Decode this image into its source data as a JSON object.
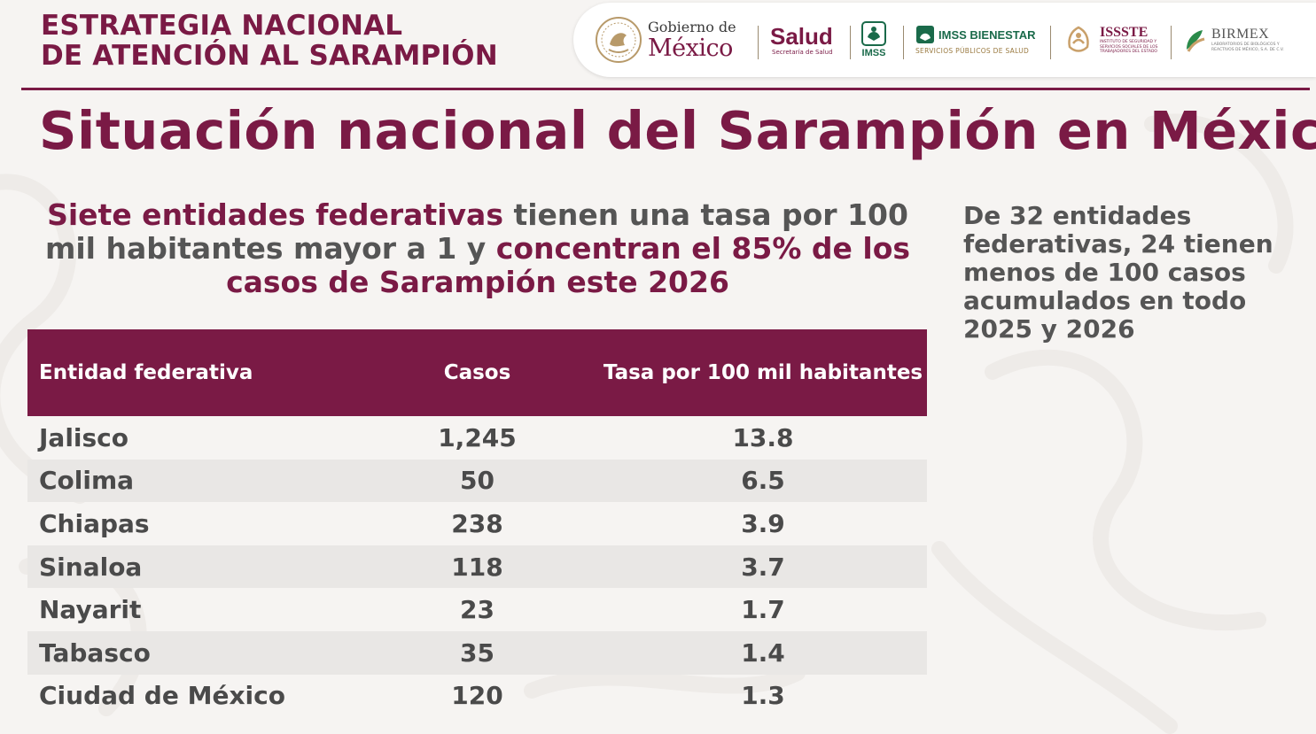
{
  "header": {
    "strategy_line1": "ESTRATEGIA NACIONAL",
    "strategy_line2": "DE ATENCIÓN AL SARAMPIÓN"
  },
  "logos": {
    "gobierno_small": "Gobierno de",
    "gobierno_big": "México",
    "salud_big": "Salud",
    "salud_small": "Secretaría de Salud",
    "imss": "IMSS",
    "bienestar_big": "IMSS BIENESTAR",
    "bienestar_small": "SERVICIOS PÚBLICOS DE SALUD",
    "issste_big": "ISSSTE",
    "issste_small": "INSTITUTO DE SEGURIDAD Y SERVICIOS SOCIALES DE LOS TRABAJADORES DEL ESTADO",
    "birmex_big": "BIRMEX",
    "birmex_small": "LABORATORIOS DE BIOLÓGICOS Y REACTIVOS DE MÉXICO, S.A. DE C.V."
  },
  "main_title": "Situación nacional del Sarampión en México",
  "subtitle": {
    "part1": "Siete entidades federativas",
    "part2": " tienen una tasa por 100 mil habitantes mayor a 1 y ",
    "part3": "concentran el 85% de los casos de Sarampión este 2026"
  },
  "side_note": "De 32 entidades federativas, 24 tienen menos de 100 casos acumulados en todo 2025 y 2026",
  "table": {
    "headers": [
      "Entidad federativa",
      "Casos",
      "Tasa por 100 mil habitantes"
    ],
    "rows": [
      [
        "Jalisco",
        "1,245",
        "13.8"
      ],
      [
        "Colima",
        "50",
        "6.5"
      ],
      [
        "Chiapas",
        "238",
        "3.9"
      ],
      [
        "Sinaloa",
        "118",
        "3.7"
      ],
      [
        "Nayarit",
        "23",
        "1.7"
      ],
      [
        "Tabasco",
        "35",
        "1.4"
      ],
      [
        "Ciudad de México",
        "120",
        "1.3"
      ]
    ]
  },
  "colors": {
    "brand": "#7a1a45",
    "text": "#4a4a4a",
    "stripe": "#e9e7e5",
    "gold": "#9a7a40",
    "green": "#1a6a4a"
  }
}
